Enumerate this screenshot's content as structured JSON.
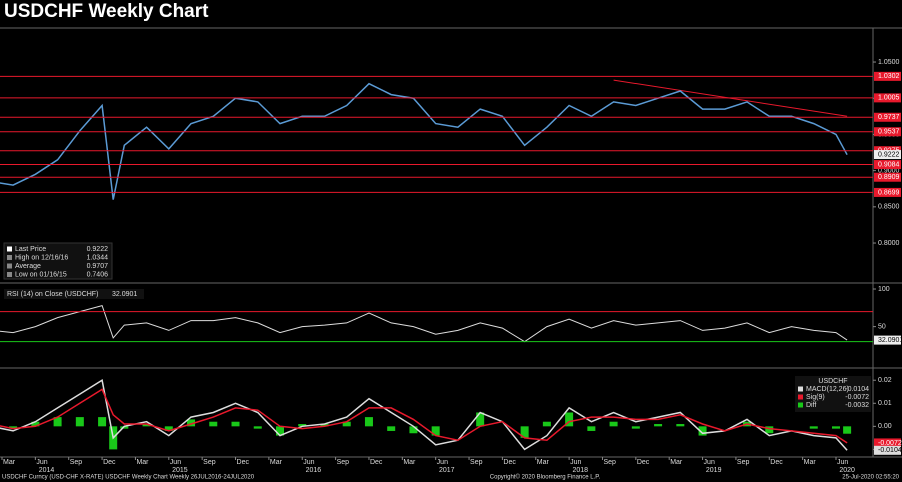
{
  "title": "USDCHF Weekly Chart",
  "footer": {
    "left": "USDCHF Curncy (USD-CHF X-RATE) USDCHF Weekly Chart  Weekly 26JUL2016-24JUL2020",
    "center": "Copyright© 2020 Bloomberg Finance L.P.",
    "right": "25-Jul-2020 02:55:20"
  },
  "x_axis": {
    "ticks": [
      {
        "value": "2014-03",
        "label": "Mar"
      },
      {
        "value": "2014-06",
        "label": "Jun"
      },
      {
        "value": "2014-09",
        "label": "Sep"
      },
      {
        "value": "2014-12",
        "label": "Dec"
      },
      {
        "value": "2015-03",
        "label": "Mar"
      },
      {
        "value": "2015-06",
        "label": "Jun"
      },
      {
        "value": "2015-09",
        "label": "Sep"
      },
      {
        "value": "2015-12",
        "label": "Dec"
      },
      {
        "value": "2016-03",
        "label": "Mar"
      },
      {
        "value": "2016-06",
        "label": "Jun"
      },
      {
        "value": "2016-09",
        "label": "Sep"
      },
      {
        "value": "2016-12",
        "label": "Dec"
      },
      {
        "value": "2017-03",
        "label": "Mar"
      },
      {
        "value": "2017-06",
        "label": "Jun"
      },
      {
        "value": "2017-09",
        "label": "Sep"
      },
      {
        "value": "2017-12",
        "label": "Dec"
      },
      {
        "value": "2018-03",
        "label": "Mar"
      },
      {
        "value": "2018-06",
        "label": "Jun"
      },
      {
        "value": "2018-09",
        "label": "Sep"
      },
      {
        "value": "2018-12",
        "label": "Dec"
      },
      {
        "value": "2019-03",
        "label": "Mar"
      },
      {
        "value": "2019-06",
        "label": "Jun"
      },
      {
        "value": "2019-09",
        "label": "Sep"
      },
      {
        "value": "2019-12",
        "label": "Dec"
      },
      {
        "value": "2020-03",
        "label": "Mar"
      },
      {
        "value": "2020-06",
        "label": "Jun"
      }
    ],
    "year_labels": [
      {
        "value": "2014-07",
        "label": "2014"
      },
      {
        "value": "2015-07",
        "label": "2015"
      },
      {
        "value": "2016-07",
        "label": "2016"
      },
      {
        "value": "2017-07",
        "label": "2017"
      },
      {
        "value": "2018-07",
        "label": "2018"
      },
      {
        "value": "2019-07",
        "label": "2019"
      },
      {
        "value": "2020-07",
        "label": "2020"
      }
    ]
  },
  "chart_data": [
    {
      "type": "line",
      "x": [
        "2014-02",
        "2014-04",
        "2014-06",
        "2014-08",
        "2014-10",
        "2014-12",
        "2015-01",
        "2015-02",
        "2015-04",
        "2015-06",
        "2015-08",
        "2015-10",
        "2015-12",
        "2016-02",
        "2016-04",
        "2016-06",
        "2016-08",
        "2016-10",
        "2016-12",
        "2017-02",
        "2017-04",
        "2017-06",
        "2017-08",
        "2017-10",
        "2017-12",
        "2018-02",
        "2018-04",
        "2018-06",
        "2018-08",
        "2018-10",
        "2018-12",
        "2019-02",
        "2019-04",
        "2019-06",
        "2019-08",
        "2019-10",
        "2019-12",
        "2020-02",
        "2020-04",
        "2020-06",
        "2020-07"
      ],
      "values": [
        0.885,
        0.88,
        0.895,
        0.915,
        0.955,
        0.99,
        0.86,
        0.935,
        0.96,
        0.93,
        0.965,
        0.975,
        1.0,
        0.995,
        0.965,
        0.975,
        0.975,
        0.99,
        1.02,
        1.005,
        1.0,
        0.965,
        0.96,
        0.985,
        0.975,
        0.935,
        0.96,
        0.99,
        0.975,
        0.995,
        0.99,
        1.0,
        1.01,
        0.985,
        0.985,
        0.995,
        0.975,
        0.975,
        0.965,
        0.95,
        0.922
      ],
      "color": "#5b9bd5",
      "ylim": [
        0.7448,
        1.097
      ],
      "yticks": [
        {
          "value": 1.05,
          "label": "1.0500"
        },
        {
          "value": 1.0,
          "label": "1.0000"
        },
        {
          "value": 0.95,
          "label": "0.9500"
        },
        {
          "value": 0.9,
          "label": "0.9000"
        },
        {
          "value": 0.85,
          "label": "0.8500"
        },
        {
          "value": 0.8,
          "label": "0.8000"
        }
      ],
      "levels": [
        1.0302,
        1.0005,
        0.9737,
        0.9537,
        0.9275,
        0.9084,
        0.8909,
        0.8699
      ],
      "level_color": "#e8192c",
      "trendline": {
        "x": [
          "2018-10",
          "2020-07"
        ],
        "values": [
          1.025,
          0.975
        ]
      },
      "stats": [
        {
          "label": "Last Price",
          "value": 0.9222
        },
        {
          "label": "High on 12/16/16",
          "value": 1.0344
        },
        {
          "label": "Average",
          "value": 0.9707
        },
        {
          "label": "Low on 01/16/15",
          "value": 0.7406
        }
      ]
    },
    {
      "type": "line",
      "title": "RSI (14)  on Close (USDCHF)",
      "x": [
        "2014-02",
        "2014-04",
        "2014-06",
        "2014-08",
        "2014-10",
        "2014-12",
        "2015-01",
        "2015-02",
        "2015-04",
        "2015-06",
        "2015-08",
        "2015-10",
        "2015-12",
        "2016-02",
        "2016-04",
        "2016-06",
        "2016-08",
        "2016-10",
        "2016-12",
        "2017-02",
        "2017-04",
        "2017-06",
        "2017-08",
        "2017-10",
        "2017-12",
        "2018-02",
        "2018-04",
        "2018-06",
        "2018-08",
        "2018-10",
        "2018-12",
        "2019-02",
        "2019-04",
        "2019-06",
        "2019-08",
        "2019-10",
        "2019-12",
        "2020-02",
        "2020-04",
        "2020-06",
        "2020-07"
      ],
      "values": [
        45,
        42,
        50,
        62,
        70,
        78,
        35,
        52,
        55,
        45,
        58,
        58,
        62,
        55,
        42,
        50,
        52,
        55,
        68,
        55,
        50,
        40,
        45,
        55,
        48,
        30,
        50,
        60,
        48,
        58,
        52,
        55,
        58,
        45,
        48,
        55,
        42,
        50,
        45,
        42,
        32.0901
      ],
      "color": "#dddddd",
      "ylim": [
        -5,
        108
      ],
      "yticks": [
        100,
        50
      ],
      "reference_lines": [
        {
          "value": 70,
          "color": "#e8192c"
        },
        {
          "value": 30,
          "color": "#19c819"
        }
      ]
    },
    {
      "type": "macd",
      "legend_title": "USDCHF",
      "x": [
        "2014-02",
        "2014-04",
        "2014-06",
        "2014-08",
        "2014-10",
        "2014-12",
        "2015-01",
        "2015-02",
        "2015-04",
        "2015-06",
        "2015-08",
        "2015-10",
        "2015-12",
        "2016-02",
        "2016-04",
        "2016-06",
        "2016-08",
        "2016-10",
        "2016-12",
        "2017-02",
        "2017-04",
        "2017-06",
        "2017-08",
        "2017-10",
        "2017-12",
        "2018-02",
        "2018-04",
        "2018-06",
        "2018-08",
        "2018-10",
        "2018-12",
        "2019-02",
        "2019-04",
        "2019-06",
        "2019-08",
        "2019-10",
        "2019-12",
        "2020-02",
        "2020-04",
        "2020-06",
        "2020-07"
      ],
      "series": [
        {
          "name": "MACD(12,26)",
          "color": "#dddddd",
          "values": [
            0.0,
            -0.002,
            0.002,
            0.008,
            0.014,
            0.02,
            -0.005,
            0.0,
            0.002,
            -0.004,
            0.004,
            0.006,
            0.01,
            0.006,
            -0.004,
            0.0,
            0.001,
            0.004,
            0.012,
            0.006,
            0.0,
            -0.008,
            -0.006,
            0.006,
            0.002,
            -0.01,
            -0.004,
            0.008,
            0.002,
            0.006,
            0.002,
            0.004,
            0.006,
            -0.003,
            -0.002,
            0.003,
            -0.004,
            -0.002,
            -0.004,
            -0.005,
            -0.0104
          ]
        },
        {
          "name": "Sig(9)",
          "color": "#e8192c",
          "values": [
            0.001,
            -0.001,
            0.0,
            0.004,
            0.01,
            0.016,
            0.005,
            0.001,
            0.001,
            -0.002,
            0.001,
            0.004,
            0.008,
            0.007,
            0.0,
            -0.001,
            0.0,
            0.002,
            0.008,
            0.008,
            0.003,
            -0.004,
            -0.006,
            0.0,
            0.002,
            -0.005,
            -0.006,
            0.002,
            0.004,
            0.004,
            0.003,
            0.003,
            0.005,
            0.001,
            -0.002,
            0.001,
            -0.001,
            -0.002,
            -0.003,
            -0.004,
            -0.0072
          ]
        },
        {
          "name": "Diff",
          "color": "#19c819",
          "values": [
            -0.001,
            -0.001,
            0.002,
            0.004,
            0.004,
            0.004,
            -0.01,
            -0.001,
            0.001,
            -0.002,
            0.003,
            0.002,
            0.002,
            -0.001,
            -0.004,
            0.001,
            0.001,
            0.002,
            0.004,
            -0.002,
            -0.003,
            -0.004,
            0.0,
            0.006,
            0.0,
            -0.005,
            0.002,
            0.006,
            -0.002,
            0.002,
            -0.001,
            0.001,
            0.001,
            -0.004,
            0.0,
            0.002,
            -0.003,
            0.0,
            -0.001,
            -0.001,
            -0.0032
          ]
        }
      ],
      "ylim": [
        -0.0133,
        0.0253
      ],
      "yticks": [
        0.02,
        0.01,
        {
          "value": 0,
          "label": "0.00"
        },
        -0.01
      ]
    }
  ]
}
